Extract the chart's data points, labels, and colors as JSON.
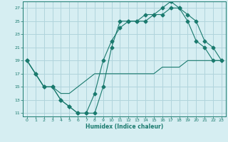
{
  "xlabel": "Humidex (Indice chaleur)",
  "background_color": "#d6eef2",
  "grid_color": "#b0d4dc",
  "line_color": "#1a7a6e",
  "xlim": [
    -0.5,
    23.5
  ],
  "ylim": [
    10.5,
    28
  ],
  "yticks": [
    11,
    13,
    15,
    17,
    19,
    21,
    23,
    25,
    27
  ],
  "xticks": [
    0,
    1,
    2,
    3,
    4,
    5,
    6,
    7,
    8,
    9,
    10,
    11,
    12,
    13,
    14,
    15,
    16,
    17,
    18,
    19,
    20,
    21,
    22,
    23
  ],
  "line1_x": [
    0,
    1,
    2,
    3,
    4,
    5,
    6,
    7,
    8,
    9,
    10,
    11,
    12,
    13,
    14,
    15,
    16,
    17,
    18,
    19,
    20,
    21,
    22,
    23
  ],
  "line1_y": [
    19,
    17,
    15,
    15,
    13,
    12,
    11,
    11,
    11,
    15,
    21,
    25,
    25,
    25,
    26,
    26,
    27,
    28,
    27,
    25,
    22,
    21,
    19,
    19
  ],
  "line2_x": [
    0,
    1,
    2,
    3,
    4,
    5,
    6,
    7,
    8,
    9,
    10,
    11,
    12,
    13,
    14,
    15,
    16,
    17,
    18,
    19,
    20,
    21,
    22,
    23
  ],
  "line2_y": [
    19,
    17,
    15,
    15,
    13,
    12,
    11,
    11,
    14,
    19,
    22,
    24,
    25,
    25,
    25,
    26,
    26,
    27,
    27,
    26,
    25,
    22,
    21,
    19
  ],
  "line3_x": [
    0,
    1,
    2,
    3,
    4,
    5,
    6,
    7,
    8,
    9,
    10,
    11,
    12,
    13,
    14,
    15,
    16,
    17,
    18,
    19,
    20,
    21,
    22,
    23
  ],
  "line3_y": [
    19,
    17,
    15,
    15,
    14,
    14,
    15,
    16,
    17,
    17,
    17,
    17,
    17,
    17,
    17,
    17,
    18,
    18,
    18,
    19,
    19,
    19,
    19,
    19
  ]
}
